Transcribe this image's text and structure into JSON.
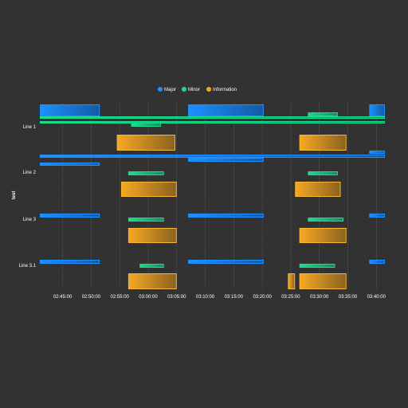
{
  "chart_data": {
    "type": "timeline",
    "title": "",
    "ylabel": "test",
    "xlabel": "",
    "legend": {
      "placement": "top-center",
      "entries": [
        {
          "name": "Major",
          "color": "#1e90ff"
        },
        {
          "name": "Minor",
          "color": "#1bdc8e"
        },
        {
          "name": "Information",
          "color": "#f7a823"
        }
      ]
    },
    "x_domain": [
      "02:41:00",
      "03:41:30"
    ],
    "x_ticks": [
      "02:45:00",
      "02:50:00",
      "02:55:00",
      "03:00:00",
      "03:05:00",
      "03:10:00",
      "03:15:00",
      "03:20:00",
      "03:25:00",
      "03:30:00",
      "03:35:00",
      "03:40:00"
    ],
    "grid": {
      "vertical": true,
      "style": "dotted"
    },
    "lanes": [
      {
        "name": "Line 1",
        "events": [
          {
            "severity": "Major",
            "start": "02:41:00",
            "end": "02:51:30"
          },
          {
            "severity": "Major",
            "start": "03:07:00",
            "end": "03:20:15"
          },
          {
            "severity": "Major",
            "start": "03:38:45",
            "end": "03:41:30"
          },
          {
            "severity": "Minor",
            "start": "02:41:00",
            "end": "03:41:30"
          },
          {
            "severity": "Minor",
            "start": "02:41:00",
            "end": "03:41:30"
          },
          {
            "severity": "Minor",
            "start": "03:28:00",
            "end": "03:33:15"
          },
          {
            "severity": "Minor",
            "start": "02:57:00",
            "end": "03:02:15"
          },
          {
            "severity": "Information",
            "start": "02:54:30",
            "end": "03:04:45"
          },
          {
            "severity": "Information",
            "start": "03:26:30",
            "end": "03:34:45"
          }
        ]
      },
      {
        "name": "Line 2",
        "events": [
          {
            "severity": "Major",
            "start": "03:38:45",
            "end": "03:41:30"
          },
          {
            "severity": "Major",
            "start": "02:41:00",
            "end": "03:41:30"
          },
          {
            "severity": "Major",
            "start": "03:07:00",
            "end": "03:20:15"
          },
          {
            "severity": "Major",
            "start": "02:41:00",
            "end": "02:51:30"
          },
          {
            "severity": "Minor",
            "start": "02:56:30",
            "end": "03:02:45"
          },
          {
            "severity": "Minor",
            "start": "03:28:00",
            "end": "03:33:15"
          },
          {
            "severity": "Information",
            "start": "02:55:15",
            "end": "03:05:00"
          },
          {
            "severity": "Information",
            "start": "03:25:45",
            "end": "03:33:45"
          }
        ]
      },
      {
        "name": "Line 3",
        "events": [
          {
            "severity": "Major",
            "start": "02:41:00",
            "end": "02:51:30"
          },
          {
            "severity": "Major",
            "start": "03:07:00",
            "end": "03:20:15"
          },
          {
            "severity": "Major",
            "start": "03:38:45",
            "end": "03:41:30"
          },
          {
            "severity": "Minor",
            "start": "02:56:30",
            "end": "03:02:45"
          },
          {
            "severity": "Minor",
            "start": "03:28:00",
            "end": "03:34:15"
          },
          {
            "severity": "Information",
            "start": "02:56:30",
            "end": "03:05:00"
          },
          {
            "severity": "Information",
            "start": "03:26:30",
            "end": "03:34:45"
          }
        ]
      },
      {
        "name": "Line 3.1",
        "events": [
          {
            "severity": "Major",
            "start": "02:41:00",
            "end": "02:51:30"
          },
          {
            "severity": "Major",
            "start": "03:07:00",
            "end": "03:20:15"
          },
          {
            "severity": "Major",
            "start": "03:38:45",
            "end": "03:41:30"
          },
          {
            "severity": "Minor",
            "start": "02:58:30",
            "end": "03:02:45"
          },
          {
            "severity": "Minor",
            "start": "03:26:30",
            "end": "03:32:45"
          },
          {
            "severity": "Information",
            "start": "02:56:30",
            "end": "03:05:00"
          },
          {
            "severity": "Information",
            "start": "03:24:30",
            "end": "03:25:45"
          },
          {
            "severity": "Information",
            "start": "03:26:30",
            "end": "03:34:45"
          }
        ]
      }
    ]
  }
}
